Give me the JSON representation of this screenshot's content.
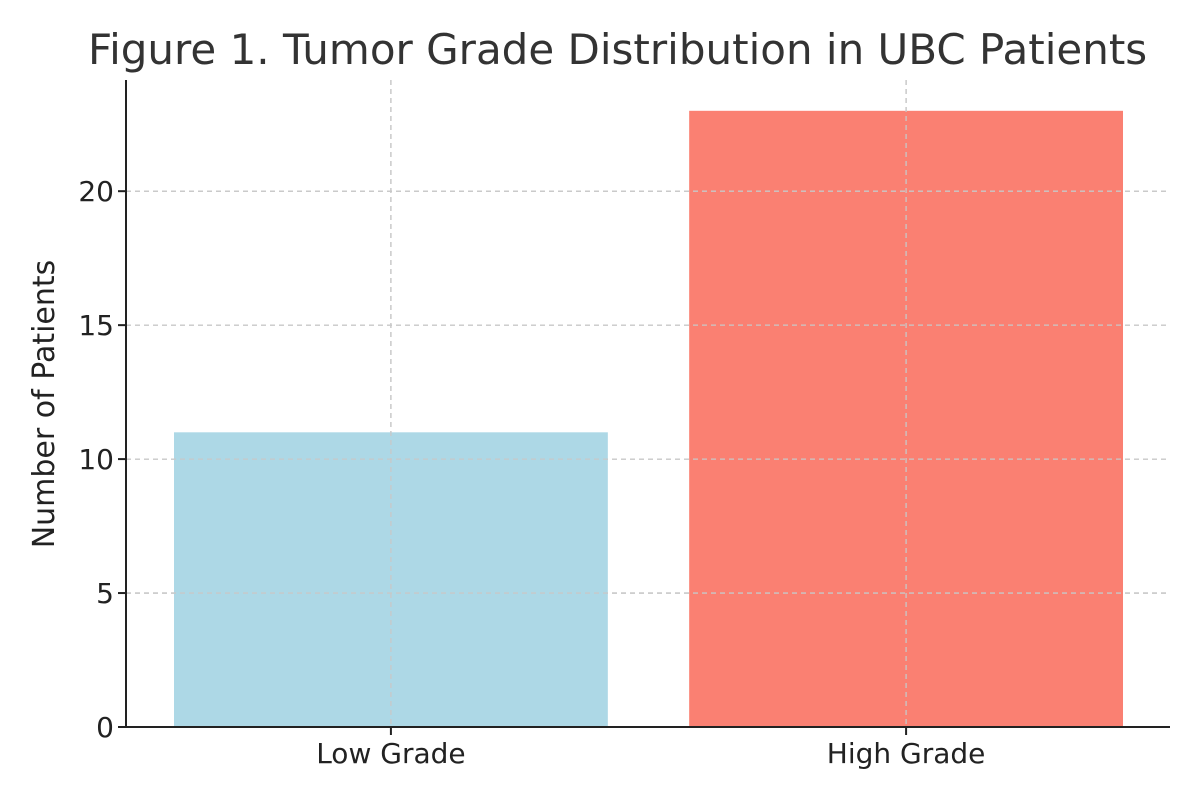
{
  "chart_data": {
    "type": "bar",
    "title": "Figure 1. Tumor Grade Distribution in UBC Patients",
    "xlabel": "",
    "ylabel": "Number of Patients",
    "categories": [
      "Low Grade",
      "High Grade"
    ],
    "values": [
      11,
      23
    ],
    "colors": [
      "#add8e6",
      "#fa8072"
    ],
    "ylim": [
      0,
      24.15
    ],
    "yticks": [
      0,
      5,
      10,
      15,
      20
    ],
    "grid": true
  }
}
